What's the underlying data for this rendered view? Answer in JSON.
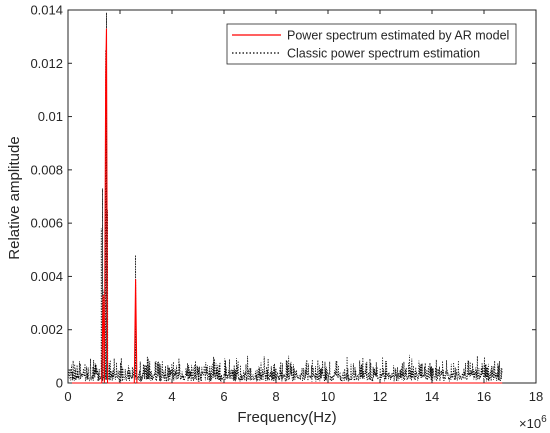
{
  "chart_data": {
    "type": "line",
    "title": "",
    "xlabel": "Frequency(Hz)",
    "ylabel": "Relative amplitude",
    "x_exponent_label": "×10",
    "x_exponent_power": "6",
    "xlim": [
      0,
      18000000
    ],
    "ylim": [
      0,
      0.014
    ],
    "grid": false,
    "legend_position": "top-right",
    "x_ticks": [
      0,
      2,
      4,
      6,
      8,
      10,
      12,
      14,
      16,
      18
    ],
    "y_ticks": [
      "0",
      "0.002",
      "0.004",
      "0.006",
      "0.008",
      "0.01",
      "0.012",
      "0.014"
    ],
    "series": [
      {
        "name": "Power spectrum estimated by AR model",
        "color": "#ff0000",
        "style": "solid",
        "x_unit_scale": 1000000,
        "points": [
          [
            0,
            0
          ],
          [
            1.3,
            0
          ],
          [
            1.35,
            0.0033
          ],
          [
            1.4,
            0
          ],
          [
            1.45,
            0.0115
          ],
          [
            1.48,
            0.0133
          ],
          [
            1.52,
            0
          ],
          [
            2.55,
            0
          ],
          [
            2.6,
            0.0039
          ],
          [
            2.65,
            0
          ],
          [
            16.7,
            0
          ]
        ]
      },
      {
        "name": "Classic power spectrum estimation",
        "color": "#000000",
        "style": "dotted",
        "x_unit_scale": 1000000,
        "noise_floor_range": [
          0.0001,
          0.0011
        ],
        "peaks": [
          [
            1.28,
            0.0058
          ],
          [
            1.33,
            0.0073
          ],
          [
            1.38,
            0.0035
          ],
          [
            1.45,
            0.0125
          ],
          [
            1.48,
            0.0139
          ],
          [
            1.52,
            0.0065
          ],
          [
            2.6,
            0.0048
          ]
        ],
        "x_range": [
          0,
          16.7
        ]
      }
    ]
  }
}
